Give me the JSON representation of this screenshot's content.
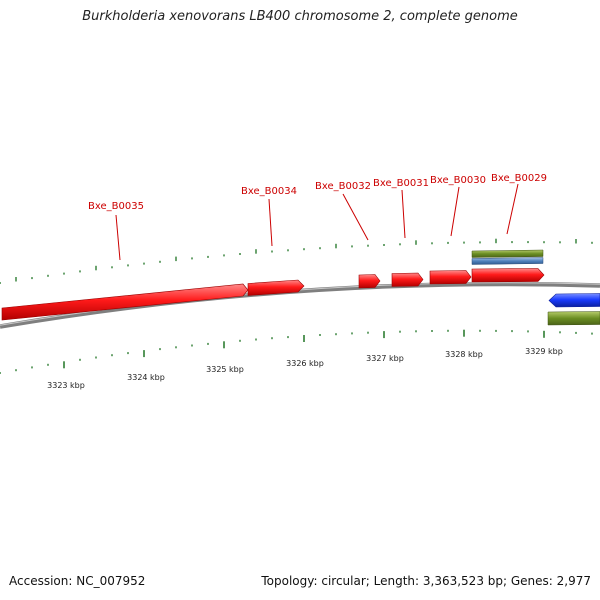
{
  "title": "Burkholderia xenovorans LB400 chromosome 2, complete genome",
  "footer": {
    "accession_text": "Accession: NC_007952",
    "stats_text": "Topology: circular; Length: 3,363,523 bp; Genes: 2,977"
  },
  "colors": {
    "forward_cds": "#ff2020",
    "reverse_cds": "#1a3cff",
    "gene_feature": "#6b8e23",
    "misc_feature": "#4f81bd",
    "backbone": "#808080",
    "tick": "#2e7d32",
    "label": "#cc0000"
  },
  "kbp_labels": [
    "3323 kbp",
    "3324 kbp",
    "3325 kbp",
    "3326 kbp",
    "3327 kbp",
    "3328 kbp",
    "3329 kbp"
  ],
  "gene_labels": [
    "Bxe_B0035",
    "Bxe_B0034",
    "Bxe_B0032",
    "Bxe_B0031",
    "Bxe_B0030",
    "Bxe_B0029"
  ],
  "features": [
    {
      "kind": "cds",
      "strand": "+",
      "label": "Bxe_B0035"
    },
    {
      "kind": "cds",
      "strand": "+",
      "label": "Bxe_B0034"
    },
    {
      "kind": "cds",
      "strand": "+",
      "label": "Bxe_B0032"
    },
    {
      "kind": "cds",
      "strand": "+",
      "label": "Bxe_B0031"
    },
    {
      "kind": "cds",
      "strand": "+",
      "label": "Bxe_B0030"
    },
    {
      "kind": "cds",
      "strand": "+",
      "label": "Bxe_B0029"
    },
    {
      "kind": "gene",
      "strand": "+",
      "label": "Bxe_B0029"
    },
    {
      "kind": "misc",
      "strand": "+",
      "label": "Bxe_B0029"
    },
    {
      "kind": "cds",
      "strand": "-",
      "label": ""
    },
    {
      "kind": "gene",
      "strand": "-",
      "label": ""
    }
  ]
}
